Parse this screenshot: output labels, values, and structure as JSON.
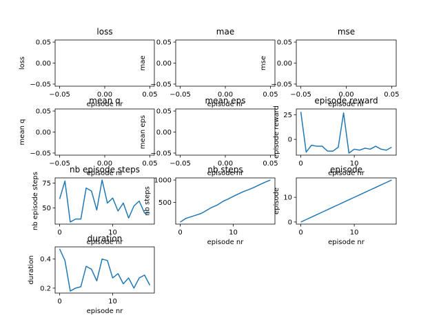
{
  "figure": {
    "background": "#ffffff",
    "line_color": "#1f77b4"
  },
  "chart_data": [
    {
      "type": "line",
      "title": "loss",
      "xlabel": "episode nr",
      "ylabel": "loss",
      "x": [],
      "y": [],
      "xlim": [
        -0.055,
        0.055
      ],
      "ylim": [
        -0.055,
        0.055
      ],
      "xticks": [
        -0.05,
        0.0,
        0.05
      ],
      "xtick_labels": [
        "−0.05",
        "0.00",
        "0.05"
      ],
      "yticks": [
        -0.05,
        0.0,
        0.05
      ],
      "ytick_labels": [
        "−0.05",
        "0.00",
        "0.05"
      ]
    },
    {
      "type": "line",
      "title": "mae",
      "xlabel": "episode nr",
      "ylabel": "mae",
      "x": [],
      "y": [],
      "xlim": [
        -0.055,
        0.055
      ],
      "ylim": [
        -0.055,
        0.055
      ],
      "xticks": [
        -0.05,
        0.0,
        0.05
      ],
      "xtick_labels": [
        "−0.05",
        "0.00",
        "0.05"
      ],
      "yticks": [
        -0.05,
        0.0,
        0.05
      ],
      "ytick_labels": [
        "−0.05",
        "0.00",
        "0.05"
      ]
    },
    {
      "type": "line",
      "title": "mse",
      "xlabel": "episode nr",
      "ylabel": "mse",
      "x": [],
      "y": [],
      "xlim": [
        -0.055,
        0.055
      ],
      "ylim": [
        -0.055,
        0.055
      ],
      "xticks": [
        -0.05,
        0.0,
        0.05
      ],
      "xtick_labels": [
        "−0.05",
        "0.00",
        "0.05"
      ],
      "yticks": [
        -0.05,
        0.0,
        0.05
      ],
      "ytick_labels": [
        "−0.05",
        "0.00",
        "0.05"
      ]
    },
    {
      "type": "line",
      "title": "mean q",
      "xlabel": "episode nr",
      "ylabel": "mean q",
      "x": [],
      "y": [],
      "xlim": [
        -0.055,
        0.055
      ],
      "ylim": [
        -0.055,
        0.055
      ],
      "xticks": [
        -0.05,
        0.0,
        0.05
      ],
      "xtick_labels": [
        "−0.05",
        "0.00",
        "0.05"
      ],
      "yticks": [
        -0.05,
        0.0,
        0.05
      ],
      "ytick_labels": [
        "−0.05",
        "0.00",
        "0.05"
      ]
    },
    {
      "type": "line",
      "title": "mean eps",
      "xlabel": "episode nr",
      "ylabel": "mean eps",
      "x": [],
      "y": [],
      "xlim": [
        -0.055,
        0.055
      ],
      "ylim": [
        -0.055,
        0.055
      ],
      "xticks": [
        -0.05,
        0.0,
        0.05
      ],
      "xtick_labels": [
        "−0.05",
        "0.00",
        "0.05"
      ],
      "yticks": [
        -0.05,
        0.0,
        0.05
      ],
      "ytick_labels": [
        "−0.05",
        "0.00",
        "0.05"
      ]
    },
    {
      "type": "line",
      "title": "episode reward",
      "xlabel": "episode nr",
      "ylabel": "episode reward",
      "x": [
        0,
        1,
        2,
        3,
        4,
        5,
        6,
        7,
        8,
        9,
        10,
        11,
        12,
        13,
        14,
        15,
        16,
        17
      ],
      "y": [
        28,
        -13,
        -6,
        -7,
        -7,
        -12,
        -12,
        -8,
        27,
        -14,
        -10,
        -11,
        -9,
        -10,
        -7,
        -10,
        -11,
        -8
      ],
      "xlim": [
        -0.85,
        17.85
      ],
      "ylim": [
        -16.1,
        31
      ],
      "xticks": [
        0,
        10
      ],
      "xtick_labels": [
        "0",
        "10"
      ],
      "yticks": [
        0,
        25
      ],
      "ytick_labels": [
        "0",
        "25"
      ]
    },
    {
      "type": "line",
      "title": "nb episode steps",
      "xlabel": "episode nr",
      "ylabel": "nb episode steps",
      "x": [
        0,
        1,
        2,
        3,
        4,
        5,
        6,
        7,
        8,
        9,
        10,
        11,
        12,
        13,
        14,
        15,
        16,
        17
      ],
      "y": [
        59,
        77,
        36,
        39,
        39,
        70,
        67,
        48,
        78,
        55,
        60,
        47,
        55,
        40,
        52,
        57,
        45,
        45
      ],
      "xlim": [
        -0.85,
        17.85
      ],
      "ylim": [
        33.9,
        80.1
      ],
      "xticks": [
        0,
        10
      ],
      "xtick_labels": [
        "0",
        "10"
      ],
      "yticks": [
        50,
        75
      ],
      "ytick_labels": [
        "50",
        "75"
      ]
    },
    {
      "type": "line",
      "title": "nb steps",
      "xlabel": "episode nr",
      "ylabel": "nb steps",
      "x": [
        0,
        1,
        2,
        3,
        4,
        5,
        6,
        7,
        8,
        9,
        10,
        11,
        12,
        13,
        14,
        15,
        16,
        17
      ],
      "y": [
        59,
        136,
        175,
        214,
        253,
        323,
        390,
        440,
        518,
        573,
        633,
        690,
        745,
        790,
        840,
        897,
        952,
        1000
      ],
      "xlim": [
        -0.85,
        17.85
      ],
      "ylim": [
        12,
        1047
      ],
      "xticks": [
        0,
        10
      ],
      "xtick_labels": [
        "0",
        "10"
      ],
      "yticks": [
        500,
        1000
      ],
      "ytick_labels": [
        "500",
        "1000"
      ]
    },
    {
      "type": "line",
      "title": "episode",
      "xlabel": "episode nr",
      "ylabel": "episode",
      "x": [
        0,
        1,
        2,
        3,
        4,
        5,
        6,
        7,
        8,
        9,
        10,
        11,
        12,
        13,
        14,
        15,
        16,
        17
      ],
      "y": [
        0,
        1,
        2,
        3,
        4,
        5,
        6,
        7,
        8,
        9,
        10,
        11,
        12,
        13,
        14,
        15,
        16,
        17
      ],
      "xlim": [
        -0.85,
        17.85
      ],
      "ylim": [
        -0.85,
        17.85
      ],
      "xticks": [
        0,
        10
      ],
      "xtick_labels": [
        "0",
        "10"
      ],
      "yticks": [
        0,
        10
      ],
      "ytick_labels": [
        "0",
        "10"
      ]
    },
    {
      "type": "line",
      "title": "duration",
      "xlabel": "episode nr",
      "ylabel": "duration",
      "x": [
        0,
        1,
        2,
        3,
        4,
        5,
        6,
        7,
        8,
        9,
        10,
        11,
        12,
        13,
        14,
        15,
        16,
        17
      ],
      "y": [
        0.47,
        0.39,
        0.18,
        0.2,
        0.21,
        0.35,
        0.33,
        0.25,
        0.4,
        0.39,
        0.27,
        0.3,
        0.23,
        0.27,
        0.2,
        0.27,
        0.29,
        0.22
      ],
      "xlim": [
        -0.85,
        17.85
      ],
      "ylim": [
        0.166,
        0.484
      ],
      "xticks": [
        0,
        10
      ],
      "xtick_labels": [
        "0",
        "10"
      ],
      "yticks": [
        0.2,
        0.4
      ],
      "ytick_labels": [
        "0.2",
        "0.4"
      ]
    }
  ]
}
